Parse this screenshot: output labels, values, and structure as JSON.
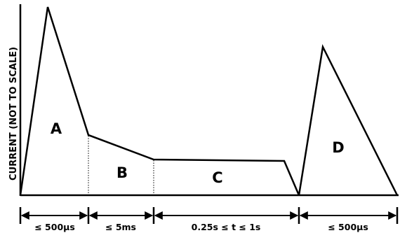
{
  "diagram": {
    "y_axis_label": "CURRENT (NOT TO SCALE)",
    "regions": [
      "A",
      "B",
      "C",
      "D"
    ],
    "durations": [
      "≤ 500µs",
      "≤ 5ms",
      "0.25s ≤ t ≤ 1s",
      "≤ 500µs"
    ]
  }
}
